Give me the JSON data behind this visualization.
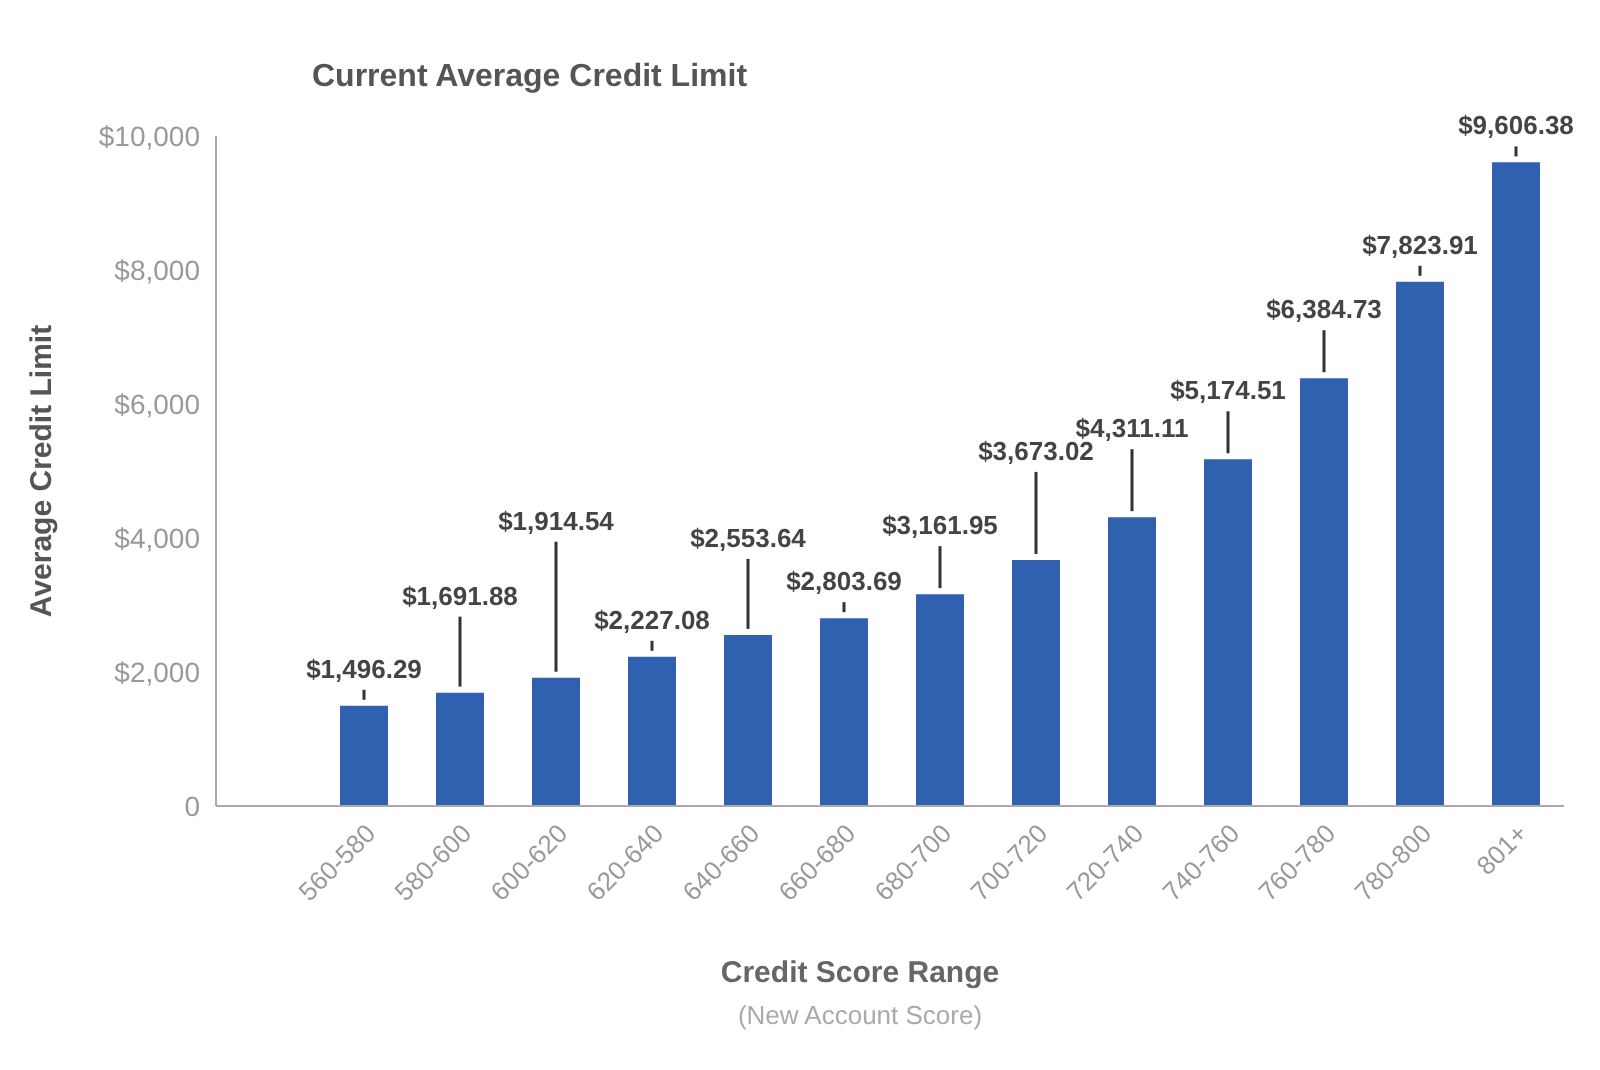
{
  "chart_data": {
    "type": "bar",
    "title": "Current Average Credit Limit",
    "xlabel": "Credit Score Range",
    "ylabel": "Average Credit Limit",
    "annotations": [
      "(New Account Score)"
    ],
    "categories": [
      "560-580",
      "580-600",
      "600-620",
      "620-640",
      "640-660",
      "660-680",
      "680-700",
      "700-720",
      "720-740",
      "740-760",
      "760-780",
      "780-800",
      "801+"
    ],
    "values": [
      1496.29,
      1691.88,
      1914.54,
      2227.08,
      2553.64,
      2803.69,
      3161.95,
      3673.02,
      4311.11,
      5174.51,
      6384.73,
      7823.91,
      9606.38
    ],
    "value_labels": [
      "$1,496.29",
      "$1,691.88",
      "$1,914.54",
      "$2,227.08",
      "$2,553.64",
      "$2,803.69",
      "$3,161.95",
      "$3,673.02",
      "$4,311.11",
      "$5,174.51",
      "$6,384.73",
      "$7,823.91",
      "$9,606.38"
    ],
    "color": "#3060b0",
    "ylim": [
      0,
      10000
    ],
    "yticks": [
      {
        "value": 0,
        "label": "0"
      },
      {
        "value": 2000,
        "label": "$2,000"
      },
      {
        "value": 4000,
        "label": "$4,000"
      },
      {
        "value": 6000,
        "label": "$6,000"
      },
      {
        "value": 8000,
        "label": "$8,000"
      },
      {
        "value": 10000,
        "label": "$10,000"
      }
    ],
    "grid": false,
    "legend": false
  }
}
